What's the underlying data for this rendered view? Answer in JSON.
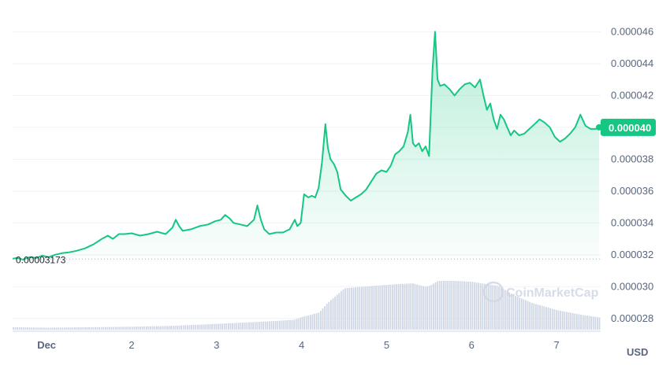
{
  "chart_data": {
    "type": "area",
    "unit": "USD",
    "x_tick_labels": [
      "Dec",
      "2",
      "3",
      "4",
      "5",
      "6",
      "7"
    ],
    "x_tick_days": [
      1,
      2,
      3,
      4,
      5,
      6,
      7
    ],
    "x_range": [
      0.6,
      7.5
    ],
    "y_tick_labels": [
      "0.000046",
      "0.000044",
      "0.000042",
      "0.000040",
      "0.000038",
      "0.000036",
      "0.000034",
      "0.000032",
      "0.000030",
      "0.000028"
    ],
    "y_tick_values": [
      4.6e-05,
      4.4e-05,
      4.2e-05,
      4e-05,
      3.8e-05,
      3.6e-05,
      3.4e-05,
      3.2e-05,
      3e-05,
      2.8e-05
    ],
    "y_range": [
      2.72e-05,
      4.75e-05
    ],
    "open_price": 3.173e-05,
    "open_price_label": "0.00003173",
    "current_price": 4e-05,
    "current_price_label": "0.000040",
    "line_color": "#16c784",
    "fill_color": "#16c784",
    "volume_color": "#cfd6e4",
    "watermark": "CoinMarketCap",
    "price_series": {
      "x": [
        0.6,
        0.65,
        0.72,
        0.8,
        0.88,
        0.95,
        1.02,
        1.1,
        1.18,
        1.26,
        1.35,
        1.45,
        1.55,
        1.65,
        1.72,
        1.78,
        1.85,
        1.92,
        2.0,
        2.1,
        2.2,
        2.3,
        2.4,
        2.48,
        2.52,
        2.56,
        2.6,
        2.7,
        2.8,
        2.9,
        2.98,
        3.05,
        3.1,
        3.15,
        3.2,
        3.28,
        3.36,
        3.44,
        3.48,
        3.52,
        3.56,
        3.62,
        3.7,
        3.78,
        3.86,
        3.92,
        3.95,
        3.99,
        4.03,
        4.08,
        4.12,
        4.16,
        4.2,
        4.24,
        4.28,
        4.31,
        4.34,
        4.38,
        4.42,
        4.46,
        4.52,
        4.58,
        4.64,
        4.7,
        4.76,
        4.82,
        4.88,
        4.94,
        5.0,
        5.05,
        5.1,
        5.15,
        5.2,
        5.25,
        5.28,
        5.31,
        5.34,
        5.38,
        5.42,
        5.46,
        5.5,
        5.54,
        5.57,
        5.6,
        5.63,
        5.68,
        5.74,
        5.8,
        5.86,
        5.92,
        5.98,
        6.04,
        6.1,
        6.14,
        6.18,
        6.22,
        6.26,
        6.3,
        6.34,
        6.38,
        6.42,
        6.46,
        6.5,
        6.56,
        6.62,
        6.68,
        6.74,
        6.8,
        6.86,
        6.92,
        6.98,
        7.04,
        7.1,
        7.16,
        7.22,
        7.28,
        7.34,
        7.4,
        7.46,
        7.5
      ],
      "y": [
        3.175e-05,
        3.18e-05,
        3.17e-05,
        3.185e-05,
        3.18e-05,
        3.195e-05,
        3.185e-05,
        3.2e-05,
        3.21e-05,
        3.215e-05,
        3.225e-05,
        3.24e-05,
        3.265e-05,
        3.3e-05,
        3.32e-05,
        3.3e-05,
        3.33e-05,
        3.33e-05,
        3.335e-05,
        3.32e-05,
        3.33e-05,
        3.345e-05,
        3.33e-05,
        3.37e-05,
        3.42e-05,
        3.38e-05,
        3.35e-05,
        3.36e-05,
        3.38e-05,
        3.39e-05,
        3.41e-05,
        3.42e-05,
        3.45e-05,
        3.43e-05,
        3.4e-05,
        3.39e-05,
        3.38e-05,
        3.42e-05,
        3.51e-05,
        3.42e-05,
        3.36e-05,
        3.33e-05,
        3.34e-05,
        3.34e-05,
        3.36e-05,
        3.42e-05,
        3.38e-05,
        3.4e-05,
        3.58e-05,
        3.56e-05,
        3.57e-05,
        3.56e-05,
        3.62e-05,
        3.78e-05,
        4.02e-05,
        3.87e-05,
        3.8e-05,
        3.77e-05,
        3.72e-05,
        3.61e-05,
        3.57e-05,
        3.54e-05,
        3.56e-05,
        3.58e-05,
        3.61e-05,
        3.66e-05,
        3.71e-05,
        3.73e-05,
        3.72e-05,
        3.76e-05,
        3.83e-05,
        3.85e-05,
        3.88e-05,
        3.97e-05,
        4.08e-05,
        3.9e-05,
        3.88e-05,
        3.9e-05,
        3.85e-05,
        3.88e-05,
        3.82e-05,
        4.36e-05,
        4.6e-05,
        4.3e-05,
        4.26e-05,
        4.27e-05,
        4.24e-05,
        4.2e-05,
        4.24e-05,
        4.27e-05,
        4.28e-05,
        4.25e-05,
        4.3e-05,
        4.2e-05,
        4.11e-05,
        4.15e-05,
        4.05e-05,
        3.99e-05,
        4.08e-05,
        4.05e-05,
        4e-05,
        3.95e-05,
        3.98e-05,
        3.95e-05,
        3.96e-05,
        3.99e-05,
        4.02e-05,
        4.05e-05,
        4.03e-05,
        4e-05,
        3.94e-05,
        3.91e-05,
        3.93e-05,
        3.96e-05,
        4e-05,
        4.08e-05,
        4.01e-05,
        3.99e-05,
        3.99e-05,
        4e-05
      ]
    },
    "volume_series": {
      "note_units": "relative",
      "x": [
        0.6,
        1.0,
        1.5,
        2.0,
        2.5,
        3.0,
        3.5,
        3.9,
        4.0,
        4.2,
        4.3,
        4.5,
        5.0,
        5.3,
        5.45,
        5.5,
        5.6,
        5.8,
        6.0,
        6.3,
        6.5,
        6.7,
        7.0,
        7.3,
        7.5
      ],
      "y": [
        0.05,
        0.04,
        0.05,
        0.06,
        0.08,
        0.12,
        0.16,
        0.2,
        0.26,
        0.35,
        0.55,
        0.85,
        0.92,
        0.95,
        0.88,
        0.9,
        1.0,
        1.0,
        0.98,
        0.9,
        0.7,
        0.55,
        0.4,
        0.3,
        0.25
      ]
    }
  }
}
